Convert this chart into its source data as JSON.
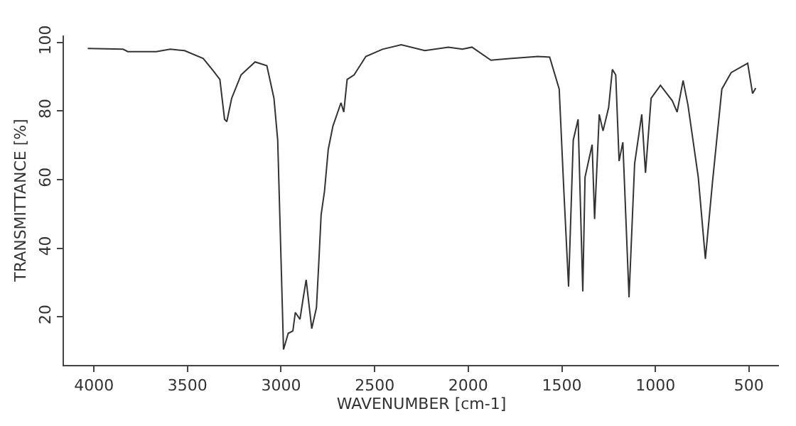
{
  "chart_data": {
    "type": "line",
    "xlabel": "WAVENUMBER [cm-1]",
    "ylabel": "TRANSMITTANCE [%]",
    "xlim": [
      4160,
      340
    ],
    "ylim": [
      6,
      102
    ],
    "xticks": [
      4000,
      3500,
      3000,
      2500,
      2000,
      1500,
      1000,
      500
    ],
    "yticks": [
      20,
      40,
      60,
      80,
      100
    ],
    "legend": false,
    "marker": "none",
    "line_style": "solid",
    "series": [
      {
        "color": "#333333",
        "x": [
          4033,
          3844,
          3819,
          3667,
          3592,
          3516,
          3416,
          3365,
          3327,
          3302,
          3290,
          3264,
          3214,
          3139,
          3076,
          3038,
          3018,
          3000,
          2987,
          2962,
          2937,
          2924,
          2899,
          2882,
          2866,
          2849,
          2836,
          2811,
          2798,
          2786,
          2768,
          2748,
          2723,
          2680,
          2665,
          2647,
          2610,
          2547,
          2458,
          2358,
          2232,
          2106,
          2031,
          1980,
          1879,
          1779,
          1627,
          1565,
          1514,
          1489,
          1464,
          1439,
          1413,
          1388,
          1376,
          1338,
          1325,
          1300,
          1280,
          1250,
          1230,
          1212,
          1194,
          1174,
          1141,
          1111,
          1073,
          1053,
          1023,
          973,
          910,
          884,
          852,
          826,
          771,
          733,
          695,
          645,
          595,
          507,
          481,
          464
        ],
        "values": [
          98.2,
          98,
          97.3,
          97.3,
          98,
          97.6,
          95.3,
          91.9,
          89.2,
          77.6,
          76.9,
          83.7,
          90.5,
          94.3,
          93.2,
          83.7,
          71.5,
          36.3,
          10.5,
          15.2,
          15.9,
          21.3,
          19.3,
          25.4,
          30.8,
          22.7,
          16.6,
          22.7,
          36.3,
          49.8,
          56.6,
          68.8,
          75.6,
          82.4,
          79.7,
          89.2,
          90.5,
          95.9,
          98,
          99.3,
          97.6,
          98.6,
          98,
          98.6,
          94.8,
          95.3,
          95.9,
          95.7,
          86.4,
          56.6,
          28.8,
          71.5,
          77.6,
          27.4,
          60.7,
          70.2,
          48.5,
          79,
          74.2,
          81,
          92.1,
          90.5,
          65.4,
          70.9,
          25.7,
          64.7,
          79,
          62,
          83.7,
          87.5,
          83,
          79.7,
          88.9,
          81.7,
          60.7,
          36.9,
          59.3,
          86.4,
          91.2,
          93.9,
          85.1,
          86.7
        ]
      }
    ]
  }
}
